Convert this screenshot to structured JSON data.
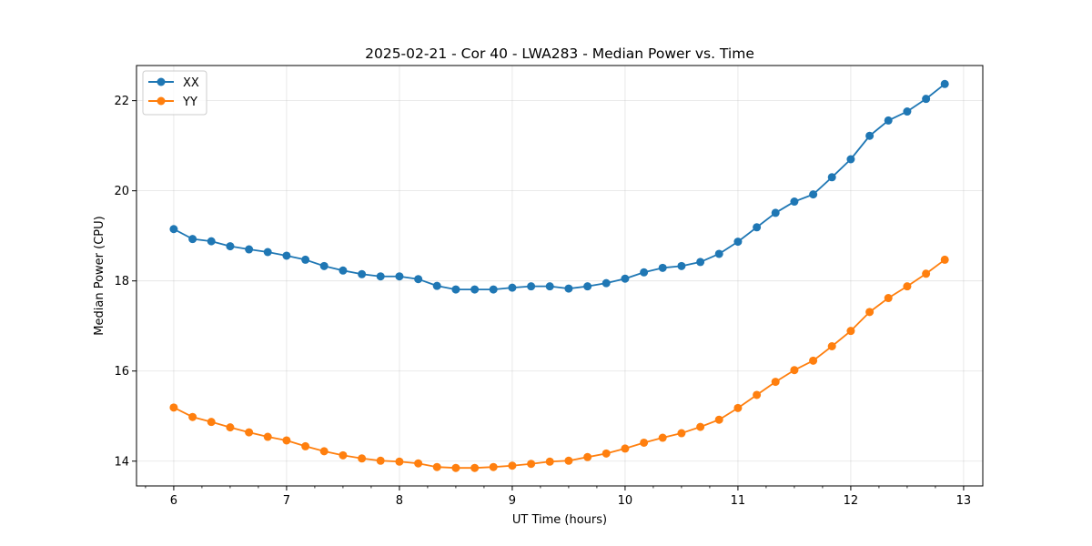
{
  "chart_data": {
    "type": "line",
    "title": "2025-02-21 - Cor 40 - LWA283 - Median Power vs. Time",
    "xlabel": "UT Time (hours)",
    "ylabel": "Median Power (CPU)",
    "xlim": [
      5.67,
      13.17
    ],
    "ylim": [
      13.45,
      22.78
    ],
    "xticks": [
      6,
      7,
      8,
      9,
      10,
      11,
      12,
      13
    ],
    "yticks": [
      14,
      16,
      18,
      20,
      22
    ],
    "grid": true,
    "legend_position": "top-left",
    "x": [
      6.0,
      6.167,
      6.333,
      6.5,
      6.667,
      6.833,
      7.0,
      7.167,
      7.333,
      7.5,
      7.667,
      7.833,
      8.0,
      8.167,
      8.333,
      8.5,
      8.667,
      8.833,
      9.0,
      9.167,
      9.333,
      9.5,
      9.667,
      9.833,
      10.0,
      10.167,
      10.333,
      10.5,
      10.667,
      10.833,
      11.0,
      11.167,
      11.333,
      11.5,
      11.667,
      11.833,
      12.0,
      12.167,
      12.333,
      12.5,
      12.667,
      12.833
    ],
    "series": [
      {
        "name": "XX",
        "color": "#1f77b4",
        "values": [
          19.15,
          18.93,
          18.88,
          18.77,
          18.7,
          18.64,
          18.56,
          18.47,
          18.33,
          18.23,
          18.15,
          18.1,
          18.1,
          18.04,
          17.89,
          17.81,
          17.81,
          17.81,
          17.85,
          17.88,
          17.88,
          17.83,
          17.88,
          17.95,
          18.05,
          18.19,
          18.29,
          18.33,
          18.42,
          18.6,
          18.87,
          19.19,
          19.51,
          19.76,
          19.92,
          20.3,
          20.7,
          21.22,
          21.56,
          21.76,
          22.04,
          22.37
        ]
      },
      {
        "name": "YY",
        "color": "#ff7f0e",
        "values": [
          15.19,
          14.98,
          14.87,
          14.75,
          14.64,
          14.54,
          14.46,
          14.33,
          14.22,
          14.13,
          14.06,
          14.01,
          13.99,
          13.95,
          13.87,
          13.85,
          13.85,
          13.87,
          13.9,
          13.94,
          13.99,
          14.01,
          14.09,
          14.17,
          14.28,
          14.41,
          14.52,
          14.62,
          14.76,
          14.92,
          15.18,
          15.47,
          15.76,
          16.02,
          16.23,
          16.55,
          16.89,
          17.31,
          17.62,
          17.88,
          18.16,
          18.47
        ]
      }
    ]
  }
}
